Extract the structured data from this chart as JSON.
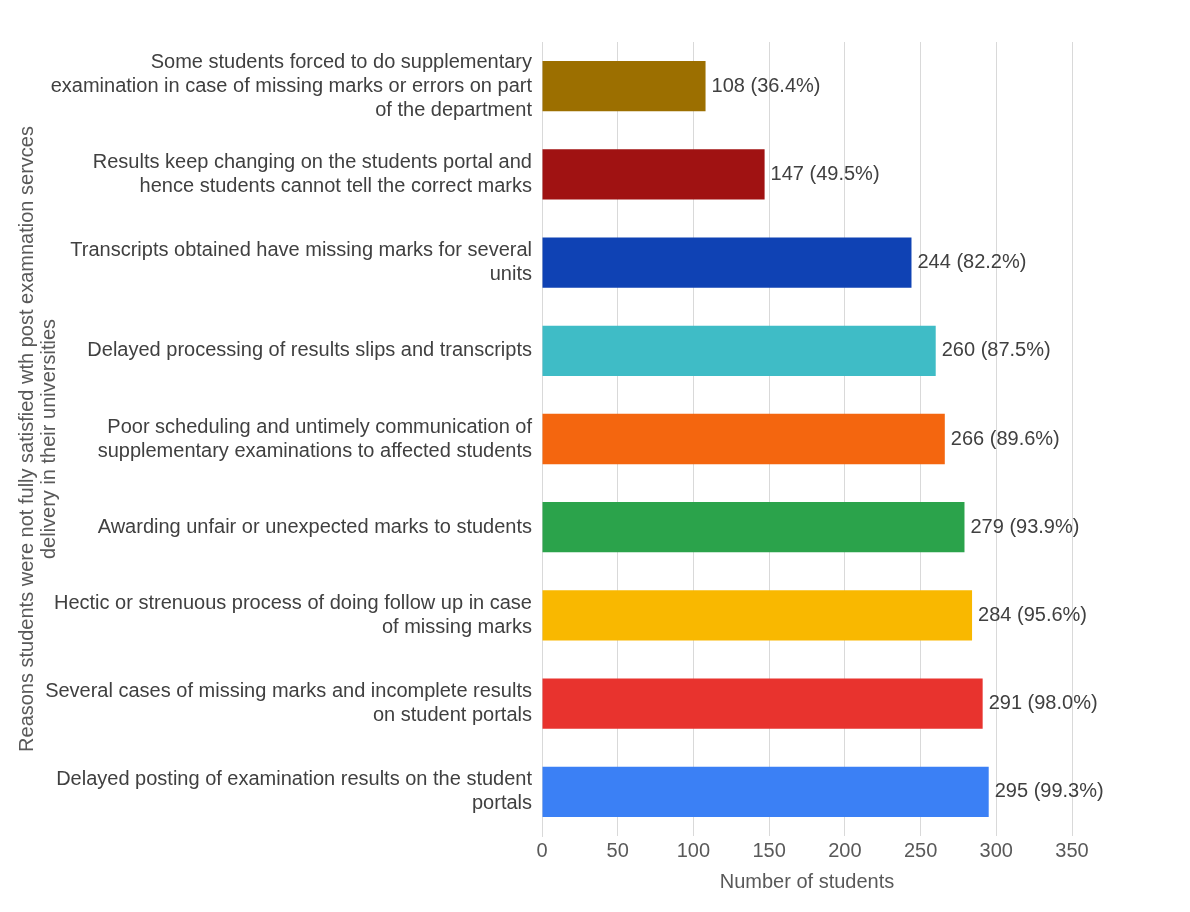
{
  "chart_data": {
    "type": "bar",
    "orientation": "horizontal",
    "xlabel": "Number of students",
    "ylabel": "Reasons students were not fully satisfied wth post examnation servces delivery in their universities",
    "categories": [
      "Some students forced to do supplementary examination in case of missing marks or errors on part of the department",
      "Results keep changing on the students portal and hence students cannot tell the correct marks",
      "Transcripts obtained have missing marks for several units",
      "Delayed processing of results slips and transcripts",
      "Poor scheduling and untimely communication of supplementary examinations to affected students",
      "Awarding unfair or unexpected marks to students",
      "Hectic or strenuous process of doing follow up in case of missing marks",
      "Several cases of missing marks and incomplete results on student portals",
      "Delayed posting of examination results on the student portals"
    ],
    "values": [
      108,
      147,
      244,
      260,
      266,
      279,
      284,
      291,
      295
    ],
    "colors": [
      "#9c6f00",
      "#a01212",
      "#0f42b4",
      "#3fbcc6",
      "#f4660f",
      "#2ba34b",
      "#f9b800",
      "#e8332e",
      "#3b80f5"
    ],
    "value_labels": [
      "108 (36.4%)",
      "147 (49.5%)",
      "244 (82.2%)",
      "260 (87.5%)",
      "266 (89.6%)",
      "279 (93.9%)",
      "284 (95.6%)",
      "291 (98.0%)",
      "295 (99.3%)"
    ],
    "xlim": [
      0,
      350
    ],
    "xticks": [
      0,
      50,
      100,
      150,
      200,
      250,
      300,
      350
    ],
    "grid": "x",
    "legend": false
  }
}
